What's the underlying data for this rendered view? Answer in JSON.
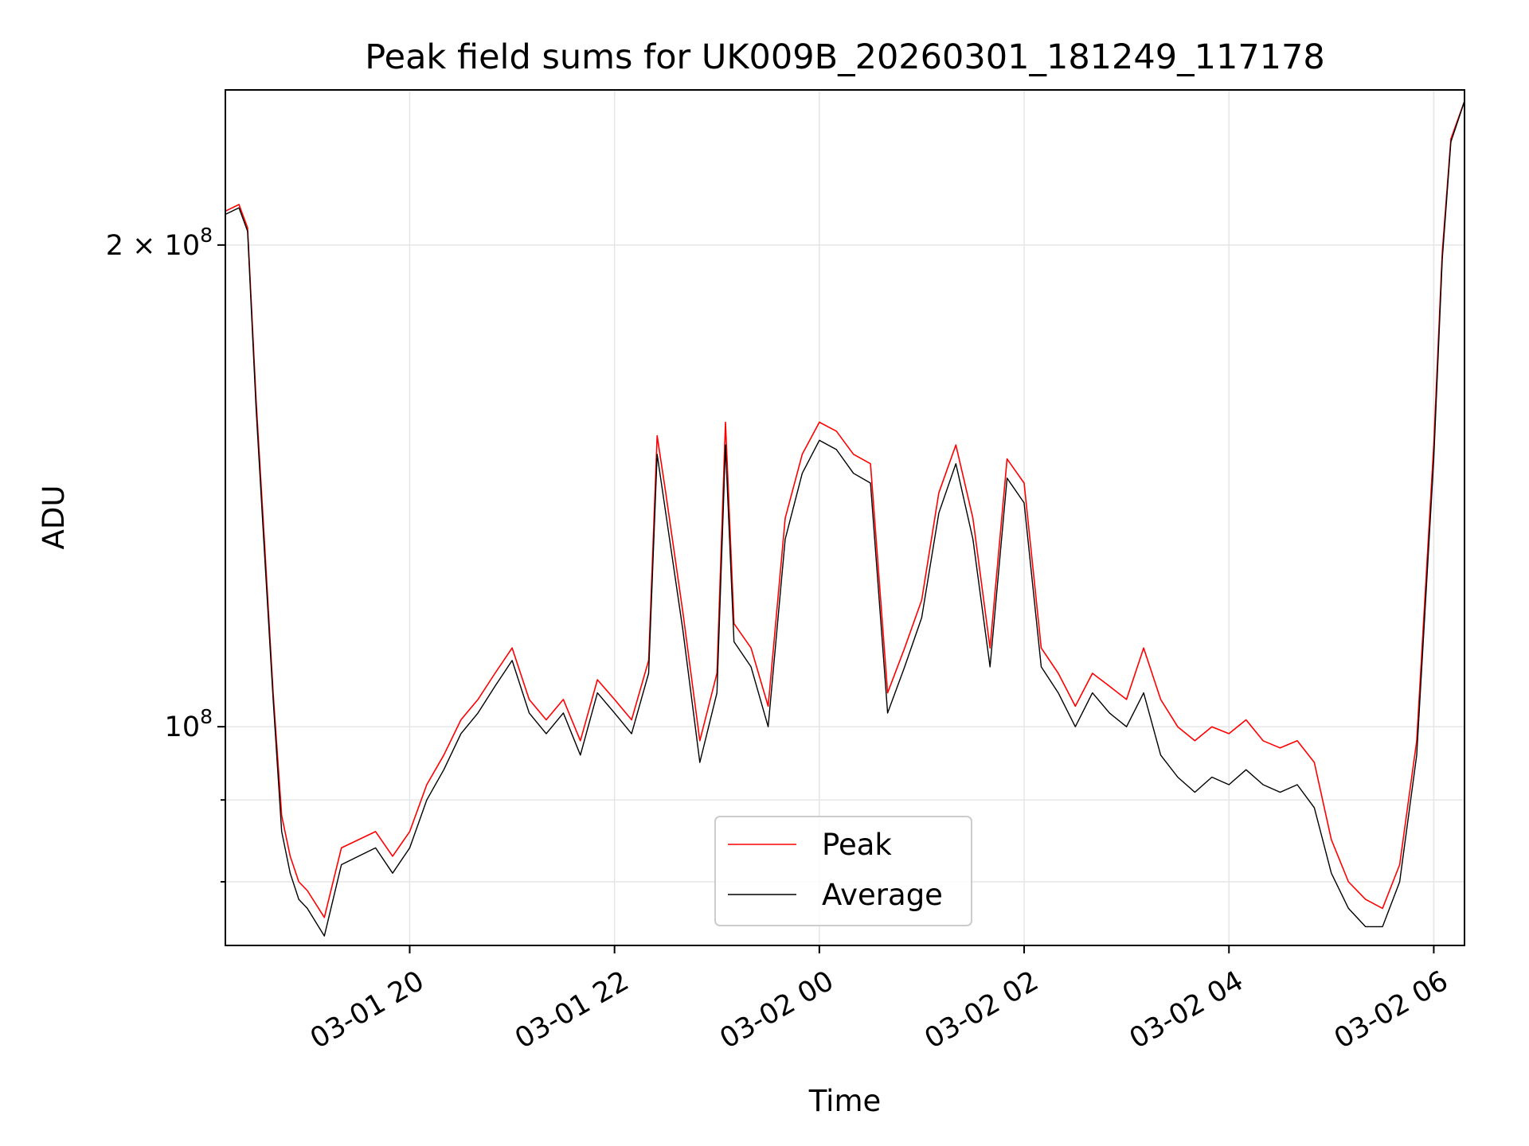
{
  "chart_data": {
    "type": "line",
    "title": "Peak field sums for UK009B_20260301_181249_117178",
    "xlabel": "Time",
    "ylabel": "ADU",
    "y_scale": "log",
    "grid": true,
    "legend_position": "lower-center",
    "x_range": [
      "2026-03-01 18:12",
      "2026-03-02 06:18"
    ],
    "y_range": [
      73000000,
      250000000
    ],
    "x_ticks": [
      {
        "value": "2026-03-01 20:00",
        "label": "03-01 20"
      },
      {
        "value": "2026-03-01 22:00",
        "label": "03-01 22"
      },
      {
        "value": "2026-03-02 00:00",
        "label": "03-02 00"
      },
      {
        "value": "2026-03-02 02:00",
        "label": "03-02 02"
      },
      {
        "value": "2026-03-02 04:00",
        "label": "03-02 04"
      },
      {
        "value": "2026-03-02 06:00",
        "label": "03-02 06"
      }
    ],
    "y_ticks": [
      {
        "value": 100000000,
        "base": "10",
        "exp": "8",
        "mantissa": ""
      },
      {
        "value": 200000000,
        "base": "10",
        "exp": "8",
        "mantissa": "2 × "
      }
    ],
    "y_minor_gridlines": [
      80000000,
      90000000
    ],
    "series": [
      {
        "name": "Peak",
        "color": "#ff0000",
        "x": [
          "2026-03-01 18:12",
          "2026-03-01 18:20",
          "2026-03-01 18:25",
          "2026-03-01 18:30",
          "2026-03-01 18:35",
          "2026-03-01 18:40",
          "2026-03-01 18:45",
          "2026-03-01 18:50",
          "2026-03-01 18:55",
          "2026-03-01 19:00",
          "2026-03-01 19:10",
          "2026-03-01 19:20",
          "2026-03-01 19:30",
          "2026-03-01 19:40",
          "2026-03-01 19:50",
          "2026-03-01 20:00",
          "2026-03-01 20:10",
          "2026-03-01 20:20",
          "2026-03-01 20:30",
          "2026-03-01 20:40",
          "2026-03-01 20:50",
          "2026-03-01 21:00",
          "2026-03-01 21:10",
          "2026-03-01 21:20",
          "2026-03-01 21:30",
          "2026-03-01 21:40",
          "2026-03-01 21:50",
          "2026-03-01 22:00",
          "2026-03-01 22:10",
          "2026-03-01 22:20",
          "2026-03-01 22:25",
          "2026-03-01 22:30",
          "2026-03-01 22:40",
          "2026-03-01 22:50",
          "2026-03-01 23:00",
          "2026-03-01 23:05",
          "2026-03-01 23:10",
          "2026-03-01 23:20",
          "2026-03-01 23:30",
          "2026-03-01 23:40",
          "2026-03-01 23:50",
          "2026-03-02 00:00",
          "2026-03-02 00:10",
          "2026-03-02 00:20",
          "2026-03-02 00:30",
          "2026-03-02 00:40",
          "2026-03-02 00:50",
          "2026-03-02 01:00",
          "2026-03-02 01:10",
          "2026-03-02 01:20",
          "2026-03-02 01:30",
          "2026-03-02 01:40",
          "2026-03-02 01:50",
          "2026-03-02 02:00",
          "2026-03-02 02:10",
          "2026-03-02 02:20",
          "2026-03-02 02:30",
          "2026-03-02 02:40",
          "2026-03-02 02:50",
          "2026-03-02 03:00",
          "2026-03-02 03:10",
          "2026-03-02 03:20",
          "2026-03-02 03:30",
          "2026-03-02 03:40",
          "2026-03-02 03:50",
          "2026-03-02 04:00",
          "2026-03-02 04:10",
          "2026-03-02 04:20",
          "2026-03-02 04:30",
          "2026-03-02 04:40",
          "2026-03-02 04:50",
          "2026-03-02 05:00",
          "2026-03-02 05:10",
          "2026-03-02 05:20",
          "2026-03-02 05:30",
          "2026-03-02 05:40",
          "2026-03-02 05:50",
          "2026-03-02 06:00",
          "2026-03-02 06:05",
          "2026-03-02 06:10",
          "2026-03-02 06:18"
        ],
        "values": [
          210000000,
          212000000,
          205000000,
          160000000,
          130000000,
          105000000,
          88000000,
          83000000,
          80000000,
          79000000,
          76000000,
          84000000,
          85000000,
          86000000,
          83000000,
          86000000,
          92000000,
          96000000,
          101000000,
          104000000,
          108000000,
          112000000,
          104000000,
          101000000,
          104000000,
          98000000,
          107000000,
          104000000,
          101000000,
          110000000,
          152000000,
          140000000,
          118000000,
          98000000,
          108000000,
          155000000,
          116000000,
          112000000,
          103000000,
          135000000,
          148000000,
          155000000,
          153000000,
          148000000,
          146000000,
          105000000,
          112000000,
          120000000,
          140000000,
          150000000,
          135000000,
          112000000,
          147000000,
          142000000,
          112000000,
          108000000,
          103000000,
          108000000,
          106000000,
          104000000,
          112000000,
          104000000,
          100000000,
          98000000,
          100000000,
          99000000,
          101000000,
          98000000,
          97000000,
          98000000,
          95000000,
          85000000,
          80000000,
          78000000,
          77000000,
          82000000,
          98000000,
          150000000,
          198000000,
          233000000,
          246000000
        ]
      },
      {
        "name": "Average",
        "color": "#000000",
        "x": [
          "2026-03-01 18:12",
          "2026-03-01 18:20",
          "2026-03-01 18:25",
          "2026-03-01 18:30",
          "2026-03-01 18:35",
          "2026-03-01 18:40",
          "2026-03-01 18:45",
          "2026-03-01 18:50",
          "2026-03-01 18:55",
          "2026-03-01 19:00",
          "2026-03-01 19:10",
          "2026-03-01 19:20",
          "2026-03-01 19:30",
          "2026-03-01 19:40",
          "2026-03-01 19:50",
          "2026-03-01 20:00",
          "2026-03-01 20:10",
          "2026-03-01 20:20",
          "2026-03-01 20:30",
          "2026-03-01 20:40",
          "2026-03-01 20:50",
          "2026-03-01 21:00",
          "2026-03-01 21:10",
          "2026-03-01 21:20",
          "2026-03-01 21:30",
          "2026-03-01 21:40",
          "2026-03-01 21:50",
          "2026-03-01 22:00",
          "2026-03-01 22:10",
          "2026-03-01 22:20",
          "2026-03-01 22:25",
          "2026-03-01 22:30",
          "2026-03-01 22:40",
          "2026-03-01 22:50",
          "2026-03-01 23:00",
          "2026-03-01 23:05",
          "2026-03-01 23:10",
          "2026-03-01 23:20",
          "2026-03-01 23:30",
          "2026-03-01 23:40",
          "2026-03-01 23:50",
          "2026-03-02 00:00",
          "2026-03-02 00:10",
          "2026-03-02 00:20",
          "2026-03-02 00:30",
          "2026-03-02 00:40",
          "2026-03-02 00:50",
          "2026-03-02 01:00",
          "2026-03-02 01:10",
          "2026-03-02 01:20",
          "2026-03-02 01:30",
          "2026-03-02 01:40",
          "2026-03-02 01:50",
          "2026-03-02 02:00",
          "2026-03-02 02:10",
          "2026-03-02 02:20",
          "2026-03-02 02:30",
          "2026-03-02 02:40",
          "2026-03-02 02:50",
          "2026-03-02 03:00",
          "2026-03-02 03:10",
          "2026-03-02 03:20",
          "2026-03-02 03:30",
          "2026-03-02 03:40",
          "2026-03-02 03:50",
          "2026-03-02 04:00",
          "2026-03-02 04:10",
          "2026-03-02 04:20",
          "2026-03-02 04:30",
          "2026-03-02 04:40",
          "2026-03-02 04:50",
          "2026-03-02 05:00",
          "2026-03-02 05:10",
          "2026-03-02 05:20",
          "2026-03-02 05:30",
          "2026-03-02 05:40",
          "2026-03-02 05:50",
          "2026-03-02 06:00",
          "2026-03-02 06:05",
          "2026-03-02 06:10",
          "2026-03-02 06:18"
        ],
        "values": [
          209000000,
          211000000,
          204000000,
          158000000,
          128000000,
          104000000,
          86000000,
          81000000,
          78000000,
          77000000,
          74000000,
          82000000,
          83000000,
          84000000,
          81000000,
          84000000,
          90000000,
          94000000,
          99000000,
          102000000,
          106000000,
          110000000,
          102000000,
          99000000,
          102000000,
          96000000,
          105000000,
          102000000,
          99000000,
          108000000,
          148000000,
          136000000,
          115000000,
          95000000,
          105000000,
          150000000,
          113000000,
          109000000,
          100000000,
          131000000,
          144000000,
          151000000,
          149000000,
          144000000,
          142000000,
          102000000,
          109000000,
          117000000,
          136000000,
          146000000,
          131000000,
          109000000,
          143000000,
          138000000,
          109000000,
          105000000,
          100000000,
          105000000,
          102000000,
          100000000,
          105000000,
          96000000,
          93000000,
          91000000,
          93000000,
          92000000,
          94000000,
          92000000,
          91000000,
          92000000,
          89000000,
          81000000,
          77000000,
          75000000,
          75000000,
          80000000,
          96000000,
          147000000,
          196000000,
          232000000,
          246000000
        ]
      }
    ]
  }
}
